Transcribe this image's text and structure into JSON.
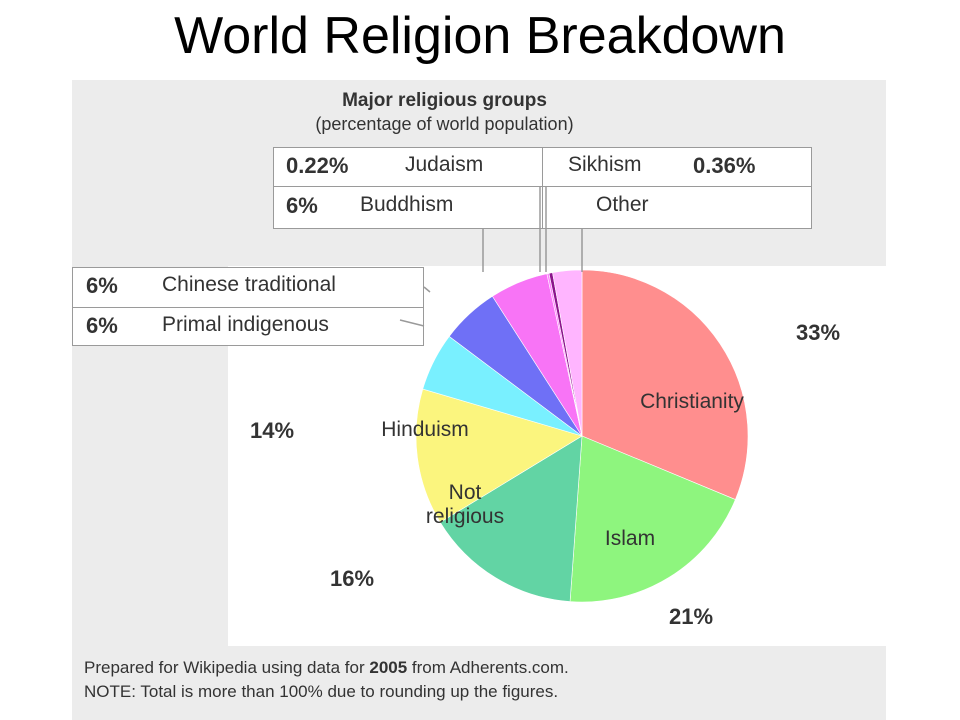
{
  "page": {
    "title": "World Religion Breakdown"
  },
  "chart_data": {
    "type": "pie",
    "title": "Major religious groups",
    "subtitle": "(percentage of world population)",
    "start_angle_deg": 0,
    "direction": "clockwise",
    "slices": [
      {
        "label": "Christianity",
        "value": 33,
        "value_label": "33%",
        "color": "#ff8e8e"
      },
      {
        "label": "Islam",
        "value": 21,
        "value_label": "21%",
        "color": "#8ef57e"
      },
      {
        "label": "Not religious",
        "value": 16,
        "value_label": "16%",
        "color": "#62d4a4"
      },
      {
        "label": "Hinduism",
        "value": 14,
        "value_label": "14%",
        "color": "#fbf57e"
      },
      {
        "label": "Primal indigenous",
        "value": 6,
        "value_label": "6%",
        "color": "#79f0ff"
      },
      {
        "label": "Chinese traditional",
        "value": 6,
        "value_label": "6%",
        "color": "#6f70f6"
      },
      {
        "label": "Buddhism",
        "value": 6,
        "value_label": "6%",
        "color": "#f874f6"
      },
      {
        "label": "Judaism",
        "value": 0.22,
        "value_label": "0.22%",
        "color": "#ff80ff"
      },
      {
        "label": "Sikhism",
        "value": 0.36,
        "value_label": "0.36%",
        "color": "#8c148c"
      },
      {
        "label": "Other",
        "value": 3,
        "value_label": "",
        "color": "#ffb5ff"
      }
    ],
    "footnote": {
      "prefix": "Prepared for Wikipedia using data for ",
      "year": "2005",
      "suffix": " from Adherents.com.",
      "note": "NOTE: Total is more than 100% due to rounding up the figures."
    }
  }
}
